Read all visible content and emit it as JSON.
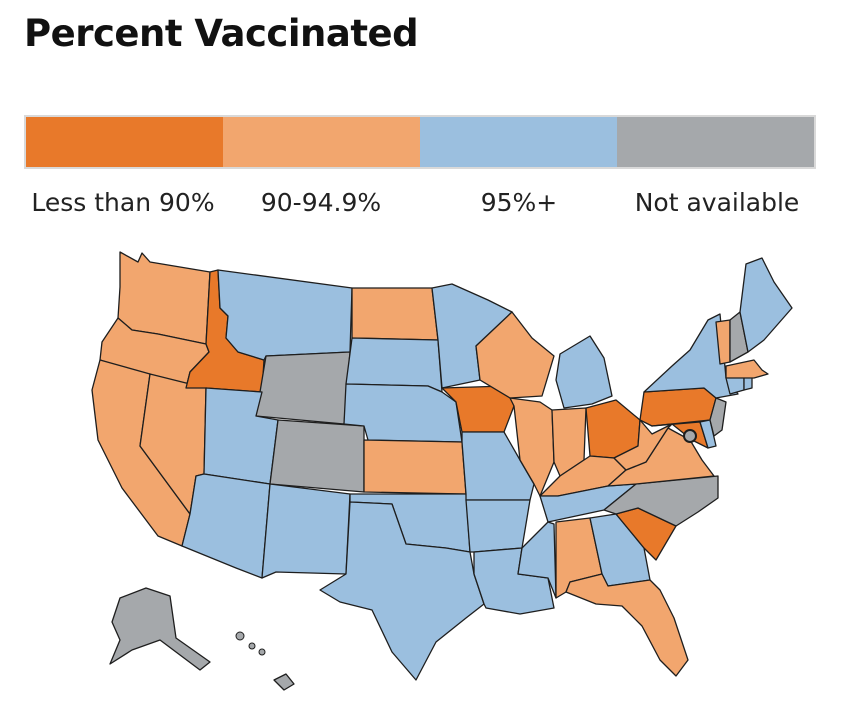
{
  "title": "Percent Vaccinated",
  "colors": {
    "less_than_90": "#e8792a",
    "range_90_94_9": "#f2a66e",
    "range_95_plus": "#9bbfdf",
    "not_available": "#a5a8ab"
  },
  "legend": [
    {
      "label": "Less than 90%",
      "category": "less_than_90"
    },
    {
      "label": "90-94.9%",
      "category": "range_90_94_9"
    },
    {
      "label": "95%+",
      "category": "range_95_plus"
    },
    {
      "label": "Not available",
      "category": "not_available"
    }
  ],
  "states": [
    {
      "name": "Washington",
      "category": "range_90_94_9"
    },
    {
      "name": "Oregon",
      "category": "range_90_94_9"
    },
    {
      "name": "California",
      "category": "range_90_94_9"
    },
    {
      "name": "Nevada",
      "category": "range_90_94_9"
    },
    {
      "name": "Idaho",
      "category": "less_than_90"
    },
    {
      "name": "Montana",
      "category": "range_95_plus"
    },
    {
      "name": "Wyoming",
      "category": "not_available"
    },
    {
      "name": "Utah",
      "category": "range_95_plus"
    },
    {
      "name": "Colorado",
      "category": "not_available"
    },
    {
      "name": "Arizona",
      "category": "range_95_plus"
    },
    {
      "name": "New Mexico",
      "category": "range_95_plus"
    },
    {
      "name": "North Dakota",
      "category": "range_90_94_9"
    },
    {
      "name": "South Dakota",
      "category": "range_95_plus"
    },
    {
      "name": "Nebraska",
      "category": "range_95_plus"
    },
    {
      "name": "Kansas",
      "category": "range_90_94_9"
    },
    {
      "name": "Oklahoma",
      "category": "range_95_plus"
    },
    {
      "name": "Texas",
      "category": "range_95_plus"
    },
    {
      "name": "Minnesota",
      "category": "range_95_plus"
    },
    {
      "name": "Iowa",
      "category": "less_than_90"
    },
    {
      "name": "Missouri",
      "category": "range_95_plus"
    },
    {
      "name": "Arkansas",
      "category": "range_95_plus"
    },
    {
      "name": "Louisiana",
      "category": "range_95_plus"
    },
    {
      "name": "Wisconsin",
      "category": "range_90_94_9"
    },
    {
      "name": "Illinois",
      "category": "range_90_94_9"
    },
    {
      "name": "Michigan",
      "category": "range_95_plus"
    },
    {
      "name": "Indiana",
      "category": "range_90_94_9"
    },
    {
      "name": "Ohio",
      "category": "less_than_90"
    },
    {
      "name": "Kentucky",
      "category": "range_90_94_9"
    },
    {
      "name": "Tennessee",
      "category": "range_95_plus"
    },
    {
      "name": "Mississippi",
      "category": "range_95_plus"
    },
    {
      "name": "Alabama",
      "category": "range_90_94_9"
    },
    {
      "name": "Georgia",
      "category": "range_95_plus"
    },
    {
      "name": "Florida",
      "category": "range_90_94_9"
    },
    {
      "name": "South Carolina",
      "category": "less_than_90"
    },
    {
      "name": "North Carolina",
      "category": "not_available"
    },
    {
      "name": "Virginia",
      "category": "range_90_94_9"
    },
    {
      "name": "West Virginia",
      "category": "range_90_94_9"
    },
    {
      "name": "Pennsylvania",
      "category": "less_than_90"
    },
    {
      "name": "New York",
      "category": "range_95_plus"
    },
    {
      "name": "Maryland",
      "category": "less_than_90"
    },
    {
      "name": "Delaware",
      "category": "range_95_plus"
    },
    {
      "name": "New Jersey",
      "category": "not_available"
    },
    {
      "name": "Connecticut",
      "category": "range_95_plus"
    },
    {
      "name": "Rhode Island",
      "category": "range_95_plus"
    },
    {
      "name": "Massachusetts",
      "category": "range_90_94_9"
    },
    {
      "name": "Vermont",
      "category": "range_90_94_9"
    },
    {
      "name": "New Hampshire",
      "category": "not_available"
    },
    {
      "name": "Maine",
      "category": "range_95_plus"
    },
    {
      "name": "District of Columbia",
      "category": "not_available"
    },
    {
      "name": "Alaska",
      "category": "not_available"
    },
    {
      "name": "Hawaii",
      "category": "not_available"
    }
  ]
}
